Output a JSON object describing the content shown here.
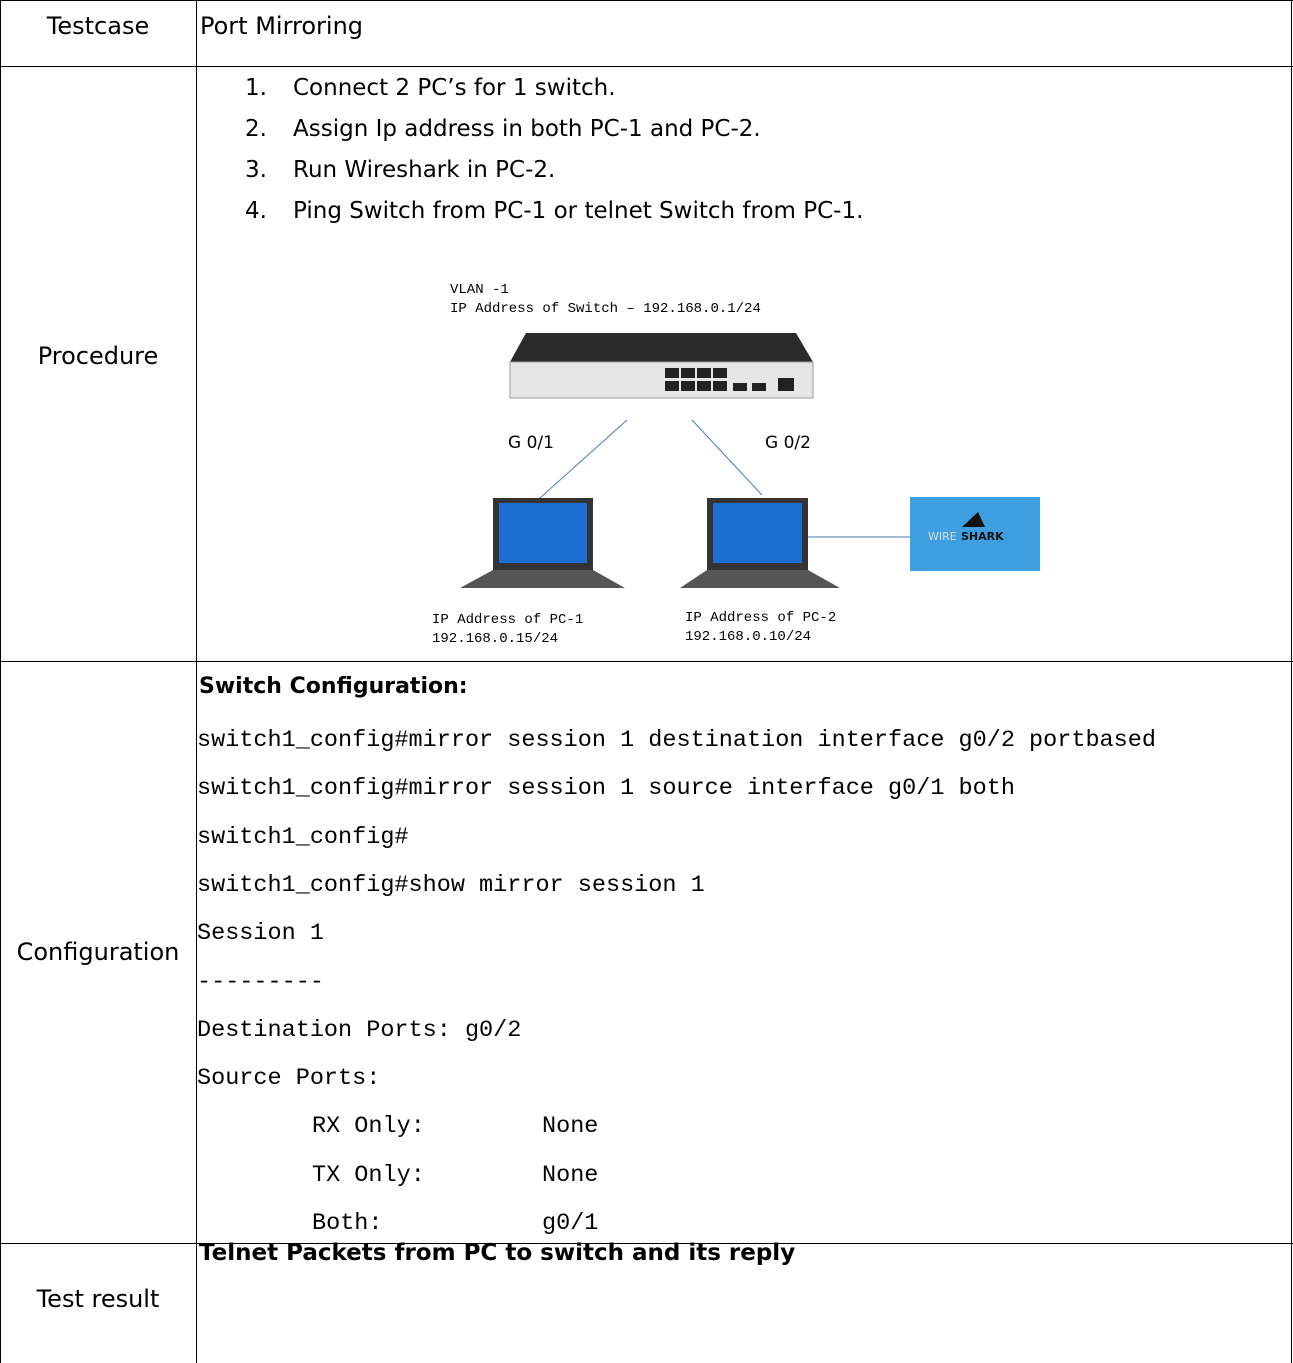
{
  "header": {
    "label": "Testcase",
    "title": "Port Mirroring"
  },
  "procedure": {
    "label": "Procedure",
    "steps": [
      "Connect 2 PC’s for 1 switch.",
      "Assign Ip address in both PC-1 and PC-2.",
      "Run Wireshark in PC-2.",
      "Ping Switch from PC-1 or telnet Switch from PC-1."
    ],
    "diagram": {
      "vlan": "VLAN -1",
      "switch_ip": "IP Address of Switch – 192.168.0.1/24",
      "port_1": "G 0/1",
      "port_2": "G 0/2",
      "pc1_label": "IP Address of PC-1",
      "pc1_ip": "192.168.0.15/24",
      "pc2_label": "IP Address of PC-2",
      "pc2_ip": "192.168.0.10/24",
      "wireshark_1": "WIRE",
      "wireshark_2": "SHARK"
    }
  },
  "configuration": {
    "label": "Configuration",
    "heading": "Switch Configuration:",
    "lines": [
      "switch1_config#mirror session 1 destination interface g0/2 portbased",
      "switch1_config#mirror session 1 source interface g0/1 both",
      "switch1_config#",
      "switch1_config#show mirror session 1",
      "Session 1",
      "---------",
      "Destination Ports: g0/2",
      "Source Ports:"
    ],
    "source_ports": [
      [
        "RX Only:",
        "None"
      ],
      [
        "TX Only:",
        "None"
      ],
      [
        "Both:",
        "g0/1"
      ]
    ]
  },
  "test_result": {
    "label": "Test result",
    "text": "Telnet Packets from PC to switch and its reply"
  }
}
